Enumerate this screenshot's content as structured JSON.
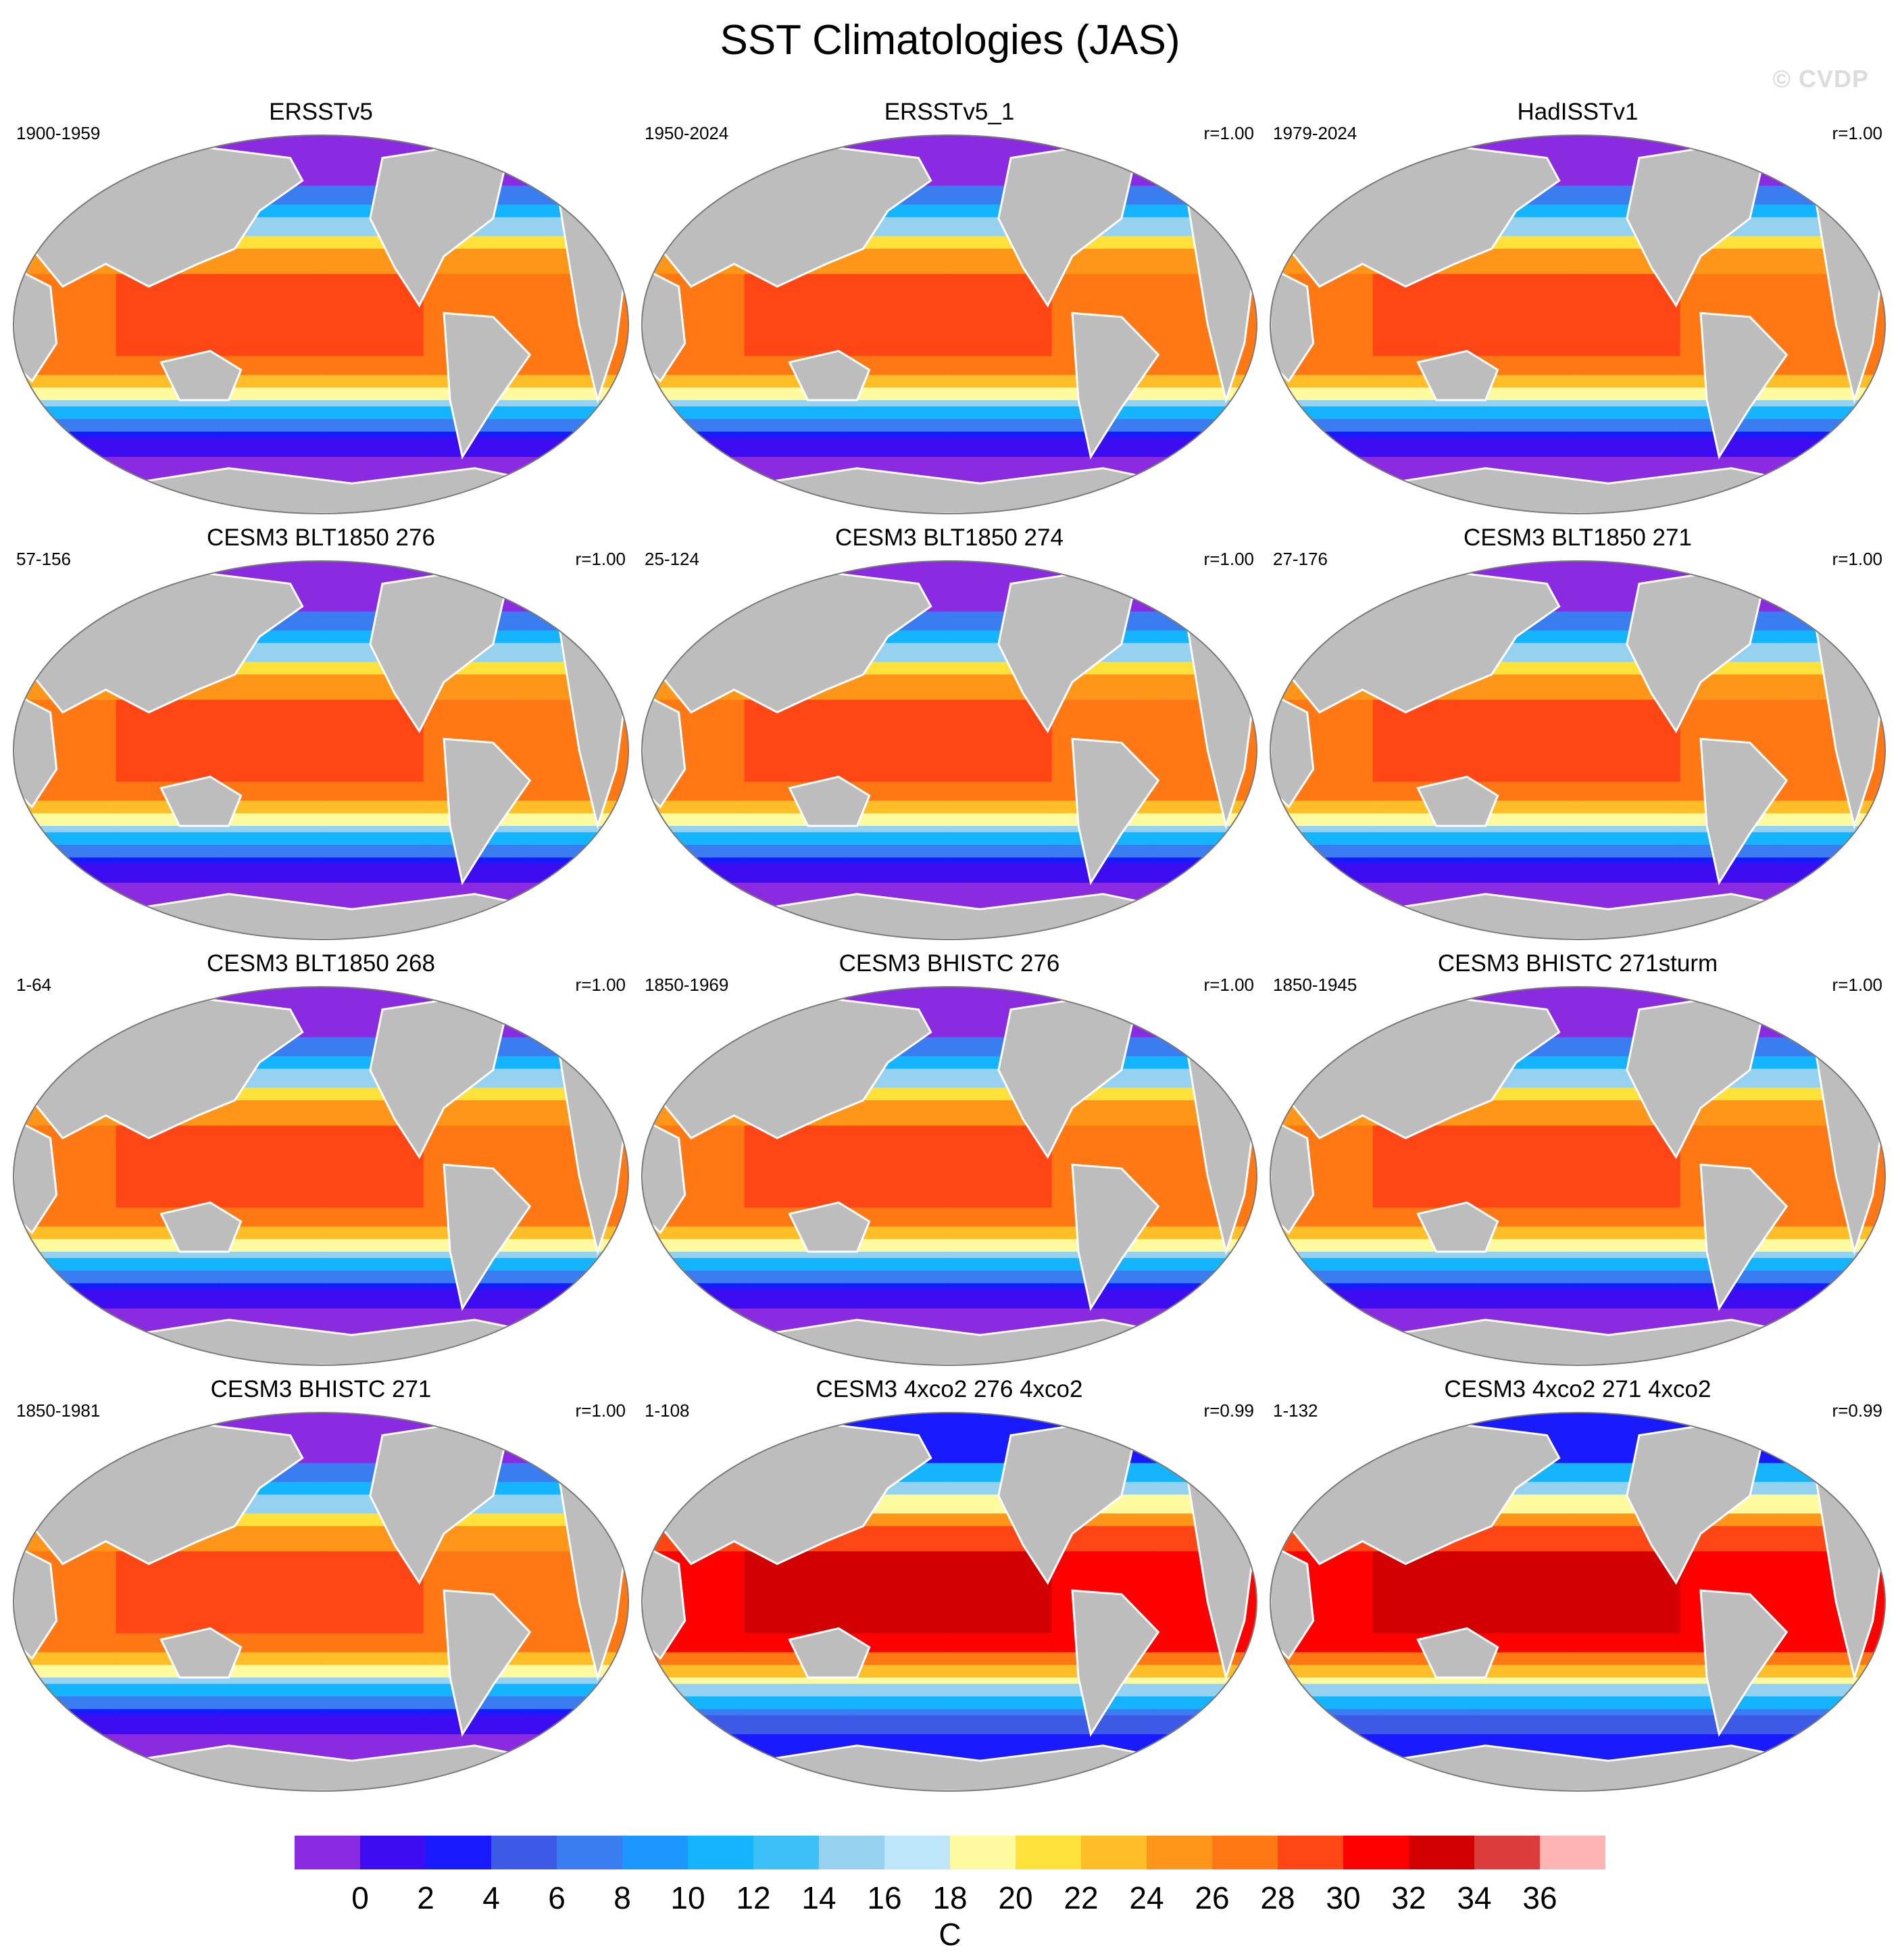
{
  "title": "SST Climatologies (JAS)",
  "watermark": "© CVDP",
  "colors": {
    "land": "#bdbdbd",
    "coast": "#ffffff",
    "outline": "#7a7a7a"
  },
  "chart_data": {
    "type": "heatmap",
    "projection": "robinson",
    "panels": [
      {
        "title": "ERSSTv5",
        "years": "1900-1959",
        "corr": ""
      },
      {
        "title": "ERSSTv5_1",
        "years": "1950-2024",
        "corr": "r=1.00"
      },
      {
        "title": "HadISSTv1",
        "years": "1979-2024",
        "corr": "r=1.00"
      },
      {
        "title": "CESM3 BLT1850 276",
        "years": "57-156",
        "corr": "r=1.00"
      },
      {
        "title": "CESM3 BLT1850 274",
        "years": "25-124",
        "corr": "r=1.00"
      },
      {
        "title": "CESM3 BLT1850 271",
        "years": "27-176",
        "corr": "r=1.00"
      },
      {
        "title": "CESM3 BLT1850 268",
        "years": "1-64",
        "corr": "r=1.00"
      },
      {
        "title": "CESM3 BHISTC 276",
        "years": "1850-1969",
        "corr": "r=1.00"
      },
      {
        "title": "CESM3 BHISTC 271sturm",
        "years": "1850-1945",
        "corr": "r=1.00"
      },
      {
        "title": "CESM3 BHISTC 271",
        "years": "1850-1981",
        "corr": "r=1.00"
      },
      {
        "title": "CESM3 4xco2 276 4xco2",
        "years": "1-108",
        "corr": "r=0.99"
      },
      {
        "title": "CESM3 4xco2 271 4xco2",
        "years": "1-132",
        "corr": "r=0.99"
      }
    ],
    "colorbar": {
      "label": "C",
      "tick_labels": [
        "0",
        "2",
        "4",
        "6",
        "8",
        "10",
        "12",
        "14",
        "16",
        "18",
        "20",
        "22",
        "24",
        "26",
        "28",
        "30",
        "32",
        "34",
        "36"
      ],
      "levels": [
        0,
        2,
        4,
        6,
        8,
        10,
        12,
        14,
        16,
        18,
        20,
        22,
        24,
        26,
        28,
        30,
        32,
        34,
        36
      ],
      "colors": [
        "#8a2be2",
        "#3d0cf0",
        "#1a1aff",
        "#3c5ae6",
        "#3a7df0",
        "#1e96ff",
        "#14b4ff",
        "#3cc0f5",
        "#96d2f0",
        "#bee6fa",
        "#fffaa0",
        "#ffe13c",
        "#ffbe28",
        "#ff9619",
        "#ff7814",
        "#ff4614",
        "#ff0000",
        "#d20000",
        "#dc3c3c",
        "#ffb4b4"
      ]
    }
  }
}
